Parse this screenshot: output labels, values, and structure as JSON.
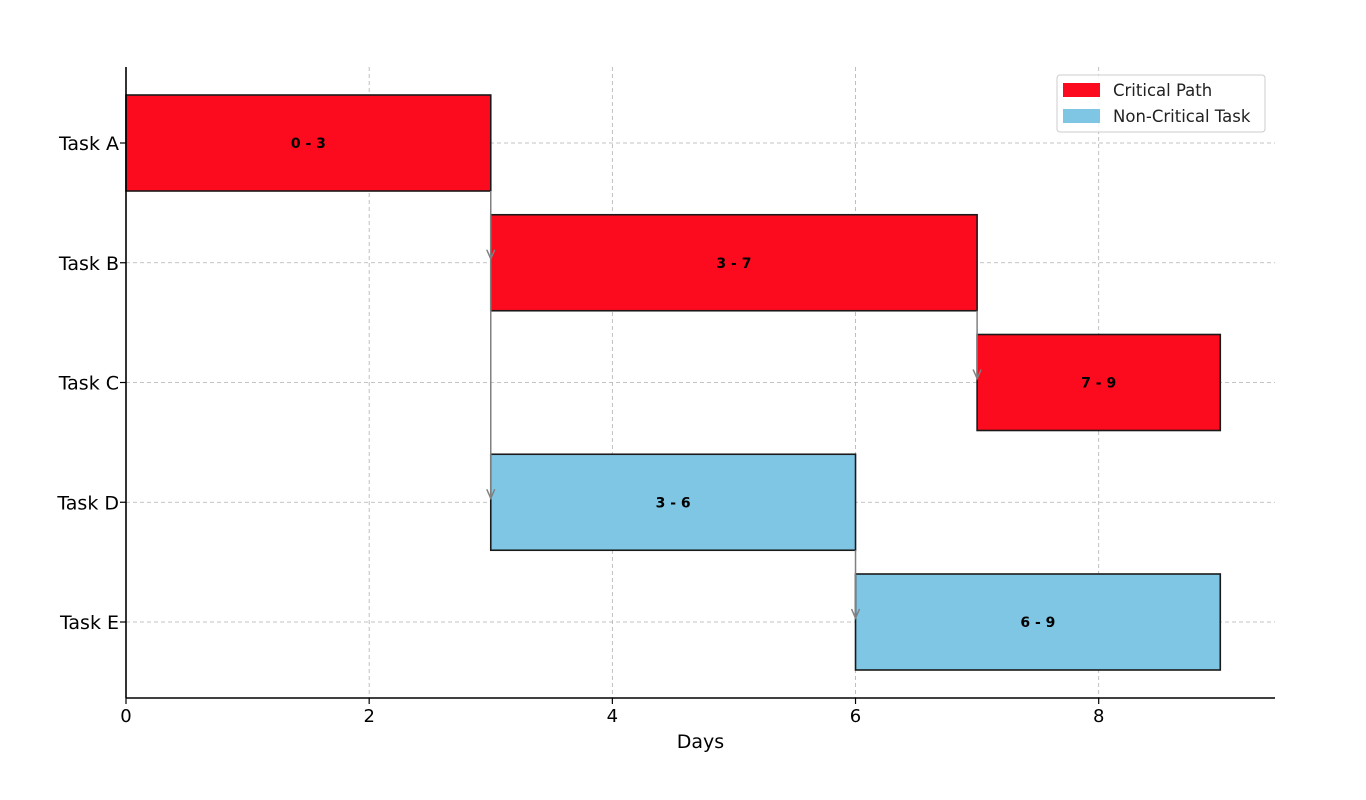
{
  "chart_data": {
    "type": "bar",
    "orientation": "horizontal",
    "xlabel": "Days",
    "ylabel": "",
    "xlim": [
      0,
      9.45
    ],
    "xticks": [
      0,
      2,
      4,
      6,
      8
    ],
    "grid": true,
    "legend_position": "top-right",
    "colors": {
      "critical": "#fc0a1e",
      "non_critical": "#7fc6e4",
      "arrow": "#808080"
    },
    "legend": [
      {
        "label": "Critical Path",
        "group": "critical"
      },
      {
        "label": "Non-Critical Task",
        "group": "non_critical"
      }
    ],
    "tasks": [
      {
        "label": "Task A",
        "start": 0,
        "end": 3,
        "group": "critical",
        "bar_label": "0 - 3"
      },
      {
        "label": "Task B",
        "start": 3,
        "end": 7,
        "group": "critical",
        "bar_label": "3 - 7"
      },
      {
        "label": "Task C",
        "start": 7,
        "end": 9,
        "group": "critical",
        "bar_label": "7 - 9"
      },
      {
        "label": "Task D",
        "start": 3,
        "end": 6,
        "group": "non_critical",
        "bar_label": "3 - 6"
      },
      {
        "label": "Task E",
        "start": 6,
        "end": 9,
        "group": "non_critical",
        "bar_label": "6 - 9"
      }
    ],
    "dependencies": [
      {
        "from": "Task A",
        "to": "Task B",
        "day": 3
      },
      {
        "from": "Task B",
        "to": "Task C",
        "day": 7
      },
      {
        "from": "Task A",
        "to": "Task D",
        "day": 3
      },
      {
        "from": "Task D",
        "to": "Task E",
        "day": 6
      }
    ]
  }
}
